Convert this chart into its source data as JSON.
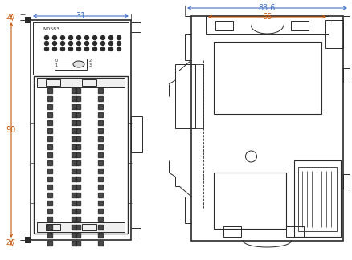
{
  "bg_color": "#ffffff",
  "line_color": "#2a2a2a",
  "dim_color_blue": "#4472c4",
  "dim_color_orange": "#c55a11",
  "fig_width": 4.39,
  "fig_height": 3.24,
  "dpi": 100,
  "dim_31": "31",
  "dim_27_top": "2.7",
  "dim_27_bot": "2.7",
  "dim_90": "90",
  "dim_836": "83.6",
  "dim_65": "65",
  "label_text": "M0583"
}
